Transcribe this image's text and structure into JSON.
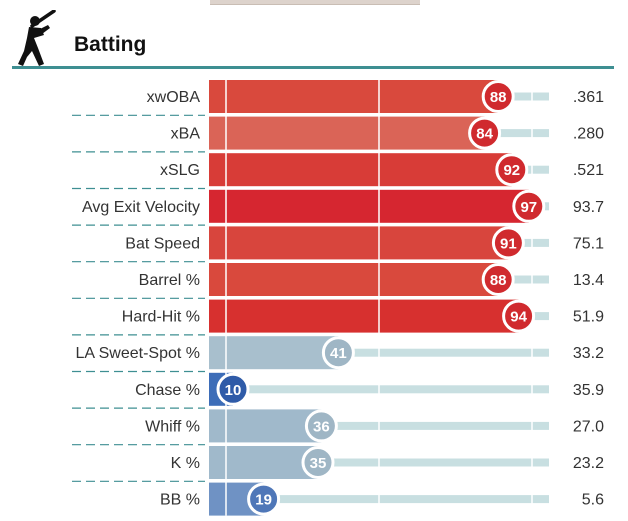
{
  "section": {
    "title": "Batting",
    "icon": "batter-silhouette-icon"
  },
  "chart_data": {
    "type": "bar",
    "orientation": "horizontal",
    "xlim": [
      0,
      100
    ],
    "gridlines": [
      5,
      50,
      95
    ],
    "categories": [
      "xwOBA",
      "xBA",
      "xSLG",
      "Avg Exit Velocity",
      "Bat Speed",
      "Barrel %",
      "Hard-Hit %",
      "LA Sweet-Spot %",
      "Chase %",
      "Whiff %",
      "K %",
      "BB %"
    ],
    "percentiles": [
      88,
      84,
      92,
      97,
      91,
      88,
      94,
      41,
      10,
      36,
      35,
      19
    ],
    "values": [
      ".361",
      ".280",
      ".521",
      "93.7",
      "75.1",
      "13.4",
      "51.9",
      "33.2",
      "35.9",
      "27.0",
      "23.2",
      "5.6"
    ],
    "bar_colors": [
      "#d9493d",
      "#da6457",
      "#d83c37",
      "#d62630",
      "#d8453d",
      "#d9493d",
      "#d7302f",
      "#a8bfcd",
      "#3d6db8",
      "#a0b9cb",
      "#a0b9cb",
      "#6f92c4"
    ],
    "badge_colors": [
      "#d02a2e",
      "#d02a2e",
      "#d02a2e",
      "#d02a2e",
      "#d02a2e",
      "#d02a2e",
      "#d02a2e",
      "#9fb6c5",
      "#2f5ba8",
      "#9fb6c5",
      "#9fb6c5",
      "#4f77b8"
    ],
    "track_color": "#c8dfe1"
  }
}
